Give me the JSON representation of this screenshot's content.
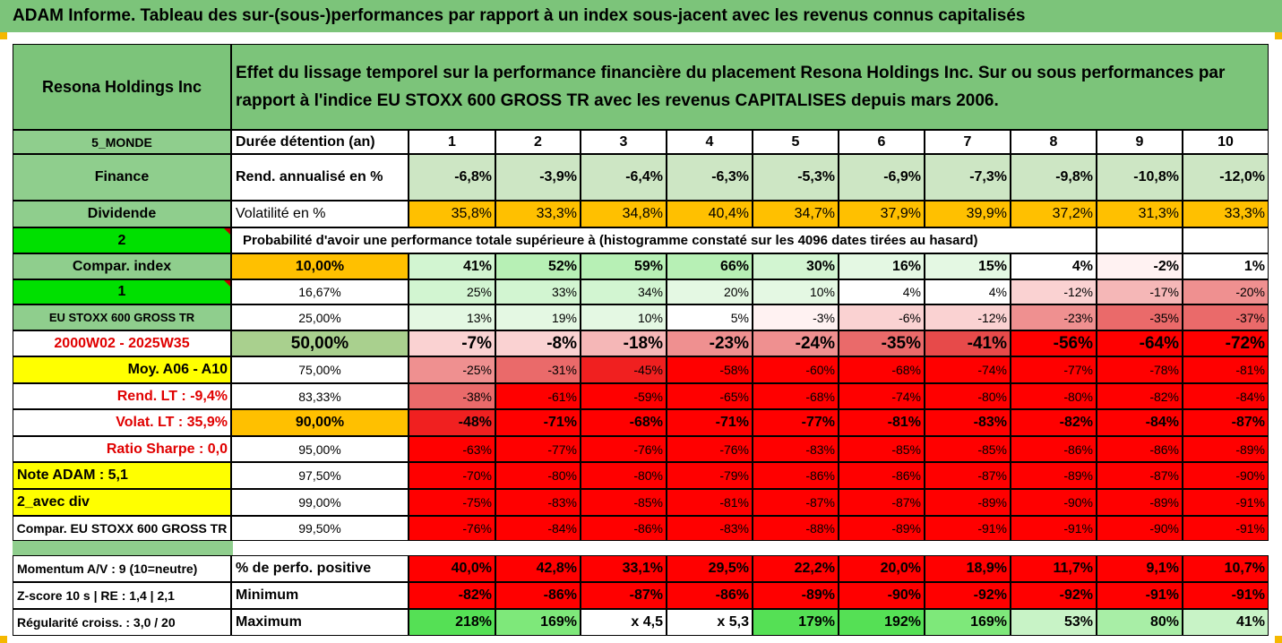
{
  "banner": "ADAM Informe. Tableau des sur-(sous-)performances par rapport à un index sous-jacent avec les revenus connus capitalisés",
  "company": "Resona Holdings Inc",
  "description": "Effet du lissage temporel sur la performance financière du placement Resona Holdings Inc. Sur ou sous performances par rapport à l'indice EU STOXX 600 GROSS TR avec les revenus CAPITALISES depuis mars 2006.",
  "left_labels": {
    "region": "5_MONDE",
    "sector": "Finance",
    "dividend": "Dividende",
    "two": "2",
    "compar_index": "Compar. index",
    "one": "1",
    "index_name": "EU STOXX 600 GROSS TR",
    "period": "2000W02 - 2025W35",
    "moy": "Moy. A06 - A10",
    "rend_lt": "Rend. LT :   -9,4%",
    "volat_lt": "Volat. LT :   35,9%",
    "sharpe": "Ratio Sharpe :   0,0",
    "note": "Note ADAM : 5,1",
    "avec_div": "2_avec div",
    "compar_long": "Compar. EU STOXX 600 GROSS TR",
    "momentum": "Momentum A/V : 9 (10=neutre)",
    "zscore": "Z-score 10 s  | RE : 1,4 | 2,1",
    "regularite": "Régularité croiss. : 3,0 / 20"
  },
  "row_labels": {
    "duree": "Durée détention (an)",
    "rend": "Rend. annualisé en %",
    "volat": "Volatilité en %",
    "probability": "Probabilité d'avoir une performance totale supérieure à (histogramme constaté sur les 4096 dates tirées au hasard)",
    "positive": "% de perfo. positive",
    "minimum": "Minimum",
    "maximum": "Maximum"
  },
  "years": [
    "1",
    "2",
    "3",
    "4",
    "5",
    "6",
    "7",
    "8",
    "9",
    "10"
  ],
  "rend": [
    "-6,8%",
    "-3,9%",
    "-6,4%",
    "-6,3%",
    "-5,3%",
    "-6,9%",
    "-7,3%",
    "-9,8%",
    "-10,8%",
    "-12,0%"
  ],
  "volat": [
    "35,8%",
    "33,3%",
    "34,8%",
    "40,4%",
    "34,7%",
    "37,9%",
    "39,9%",
    "37,2%",
    "31,3%",
    "33,3%"
  ],
  "percentiles": [
    "10,00%",
    "16,67%",
    "25,00%",
    "50,00%",
    "75,00%",
    "83,33%",
    "90,00%",
    "95,00%",
    "97,50%",
    "99,00%",
    "99,50%"
  ],
  "quantiles": [
    [
      "41%",
      "52%",
      "59%",
      "66%",
      "30%",
      "16%",
      "15%",
      "4%",
      "-2%",
      "1%"
    ],
    [
      "25%",
      "33%",
      "34%",
      "20%",
      "10%",
      "4%",
      "4%",
      "-12%",
      "-17%",
      "-20%"
    ],
    [
      "13%",
      "19%",
      "10%",
      "5%",
      "-3%",
      "-6%",
      "-12%",
      "-23%",
      "-35%",
      "-37%"
    ],
    [
      "-7%",
      "-8%",
      "-18%",
      "-23%",
      "-24%",
      "-35%",
      "-41%",
      "-56%",
      "-64%",
      "-72%"
    ],
    [
      "-25%",
      "-31%",
      "-45%",
      "-58%",
      "-60%",
      "-68%",
      "-74%",
      "-77%",
      "-78%",
      "-81%"
    ],
    [
      "-38%",
      "-61%",
      "-59%",
      "-65%",
      "-68%",
      "-74%",
      "-80%",
      "-80%",
      "-82%",
      "-84%"
    ],
    [
      "-48%",
      "-71%",
      "-68%",
      "-71%",
      "-77%",
      "-81%",
      "-83%",
      "-82%",
      "-84%",
      "-87%"
    ],
    [
      "-63%",
      "-77%",
      "-76%",
      "-76%",
      "-83%",
      "-85%",
      "-85%",
      "-86%",
      "-86%",
      "-89%"
    ],
    [
      "-70%",
      "-80%",
      "-80%",
      "-79%",
      "-86%",
      "-86%",
      "-87%",
      "-89%",
      "-87%",
      "-90%"
    ],
    [
      "-75%",
      "-83%",
      "-85%",
      "-81%",
      "-87%",
      "-87%",
      "-89%",
      "-90%",
      "-89%",
      "-91%"
    ],
    [
      "-76%",
      "-84%",
      "-86%",
      "-83%",
      "-88%",
      "-89%",
      "-91%",
      "-91%",
      "-90%",
      "-91%"
    ]
  ],
  "positive": [
    "40,0%",
    "42,8%",
    "33,1%",
    "29,5%",
    "22,2%",
    "20,0%",
    "18,9%",
    "11,7%",
    "9,1%",
    "10,7%"
  ],
  "minimum": [
    "-82%",
    "-86%",
    "-87%",
    "-86%",
    "-89%",
    "-90%",
    "-92%",
    "-92%",
    "-91%",
    "-91%"
  ],
  "maximum": [
    "218%",
    "169%",
    "x 4,5",
    "x 5,3",
    "179%",
    "192%",
    "169%",
    "53%",
    "80%",
    "41%"
  ],
  "colors": {
    "green_header": "#7cc47a",
    "green_label": "#8fce8d",
    "bright_green": "#00e000",
    "yellow": "#ffff00",
    "orange": "#ffc000",
    "red": "#ff0000",
    "dark_red_text": "#e00000"
  }
}
